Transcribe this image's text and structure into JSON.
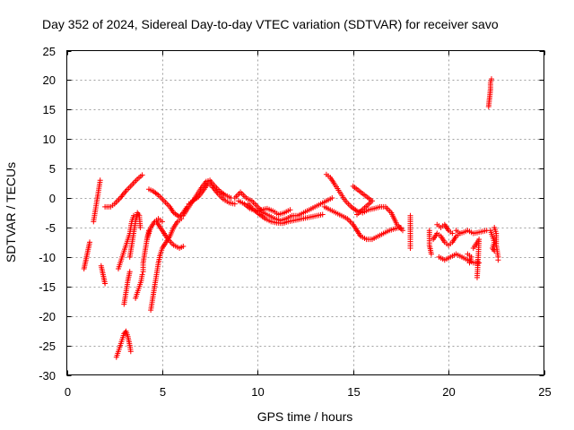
{
  "chart_data": {
    "type": "scatter",
    "title": "Day 352 of 2024, Sidereal Day-to-day VTEC variation (SDTVAR) for receiver savo",
    "xlabel": "GPS time / hours",
    "ylabel": "SDTVAR / TECUs",
    "xlim": [
      0,
      25
    ],
    "ylim": [
      -30,
      25
    ],
    "xticks": [
      0,
      5,
      10,
      15,
      20,
      25
    ],
    "yticks": [
      -30,
      -25,
      -20,
      -15,
      -10,
      -5,
      0,
      5,
      10,
      15,
      20,
      25
    ],
    "grid": true,
    "legend": "none",
    "marker": "+",
    "series_color": "#ff0000",
    "segments": [
      [
        [
          0.9,
          -12
        ],
        [
          1.0,
          -10.5
        ],
        [
          1.1,
          -9
        ],
        [
          1.2,
          -7.5
        ]
      ],
      [
        [
          1.4,
          -4
        ],
        [
          1.5,
          -2
        ],
        [
          1.6,
          0
        ],
        [
          1.7,
          2
        ],
        [
          1.75,
          3
        ]
      ],
      [
        [
          1.8,
          -11.5
        ],
        [
          1.9,
          -13
        ],
        [
          2.0,
          -14.5
        ]
      ],
      [
        [
          2.0,
          -1.5
        ],
        [
          2.3,
          -1.5
        ],
        [
          2.5,
          -1
        ],
        [
          2.8,
          0
        ],
        [
          3.1,
          1.2
        ],
        [
          3.4,
          2.2
        ],
        [
          3.7,
          3.2
        ],
        [
          3.95,
          3.9
        ]
      ],
      [
        [
          2.6,
          -27
        ],
        [
          2.7,
          -26
        ],
        [
          2.8,
          -25
        ],
        [
          2.9,
          -24
        ],
        [
          3.0,
          -23
        ],
        [
          3.1,
          -22.6
        ],
        [
          3.2,
          -23.5
        ],
        [
          3.3,
          -25
        ],
        [
          3.35,
          -26
        ]
      ],
      [
        [
          2.7,
          -12
        ],
        [
          2.8,
          -11
        ],
        [
          2.9,
          -10
        ],
        [
          3.0,
          -9
        ],
        [
          3.1,
          -8
        ],
        [
          3.2,
          -7
        ],
        [
          3.3,
          -6
        ],
        [
          3.4,
          -4
        ],
        [
          3.5,
          -3
        ]
      ],
      [
        [
          3.0,
          -18
        ],
        [
          3.1,
          -16
        ],
        [
          3.2,
          -14
        ],
        [
          3.3,
          -12.5
        ]
      ],
      [
        [
          3.3,
          -10
        ],
        [
          3.4,
          -8
        ],
        [
          3.5,
          -6
        ],
        [
          3.6,
          -4
        ],
        [
          3.7,
          -2.5
        ],
        [
          3.8,
          -3
        ],
        [
          3.85,
          -5
        ]
      ],
      [
        [
          3.6,
          -17
        ],
        [
          3.7,
          -16
        ],
        [
          3.8,
          -15
        ],
        [
          3.9,
          -14
        ],
        [
          3.95,
          -13
        ]
      ],
      [
        [
          4.0,
          -12.5
        ],
        [
          4.0,
          -11
        ],
        [
          4.1,
          -9
        ],
        [
          4.2,
          -7
        ],
        [
          4.3,
          -5.5
        ]
      ],
      [
        [
          4.2,
          -7
        ],
        [
          4.4,
          -5
        ],
        [
          4.6,
          -4
        ],
        [
          4.8,
          -3.5
        ],
        [
          5.0,
          -4
        ]
      ],
      [
        [
          4.4,
          -19
        ],
        [
          4.5,
          -17
        ],
        [
          4.6,
          -15
        ],
        [
          4.7,
          -13
        ],
        [
          4.8,
          -11
        ],
        [
          4.9,
          -9.5
        ],
        [
          5.0,
          -8.5
        ],
        [
          5.2,
          -7.5
        ],
        [
          5.4,
          -6.5
        ],
        [
          5.6,
          -5
        ],
        [
          5.8,
          -4
        ],
        [
          6.0,
          -3.5
        ]
      ],
      [
        [
          4.3,
          1.5
        ],
        [
          4.5,
          1.2
        ],
        [
          4.8,
          0.5
        ],
        [
          5.1,
          -0.5
        ],
        [
          5.4,
          -1.5
        ],
        [
          5.6,
          -2.5
        ],
        [
          5.9,
          -3.2
        ],
        [
          6.1,
          -2.5
        ],
        [
          6.3,
          -1.5
        ]
      ],
      [
        [
          4.7,
          -4
        ],
        [
          4.9,
          -5
        ],
        [
          5.1,
          -6
        ],
        [
          5.3,
          -7
        ],
        [
          5.6,
          -8
        ],
        [
          5.9,
          -8.5
        ],
        [
          6.1,
          -8.2
        ]
      ],
      [
        [
          6.1,
          -3
        ],
        [
          6.4,
          -1.5
        ],
        [
          6.7,
          0
        ],
        [
          7.0,
          1.5
        ],
        [
          7.3,
          2.8
        ],
        [
          7.5,
          3
        ],
        [
          7.7,
          2.2
        ],
        [
          8.0,
          1.2
        ],
        [
          8.3,
          0.5
        ],
        [
          8.6,
          0
        ]
      ],
      [
        [
          6.4,
          -1
        ],
        [
          6.6,
          -0.5
        ],
        [
          6.9,
          0.2
        ],
        [
          7.2,
          1.5
        ],
        [
          7.4,
          2.5
        ],
        [
          7.6,
          2
        ],
        [
          7.9,
          0.8
        ],
        [
          8.2,
          -0.2
        ],
        [
          8.5,
          -0.8
        ],
        [
          8.8,
          -1
        ]
      ],
      [
        [
          8.8,
          0
        ],
        [
          9.1,
          1
        ],
        [
          9.4,
          0
        ],
        [
          9.7,
          -0.5
        ],
        [
          10.0,
          -1.5
        ],
        [
          10.3,
          -2.5
        ],
        [
          10.6,
          -3
        ],
        [
          10.9,
          -3.5
        ],
        [
          11.2,
          -3.8
        ],
        [
          11.5,
          -3.5
        ],
        [
          11.8,
          -3
        ],
        [
          12.1,
          -3
        ],
        [
          12.4,
          -2.5
        ],
        [
          12.7,
          -2
        ],
        [
          13.0,
          -1.5
        ],
        [
          13.3,
          -1
        ],
        [
          13.6,
          -0.5
        ],
        [
          13.9,
          0
        ]
      ],
      [
        [
          9.5,
          -1
        ],
        [
          9.8,
          -2
        ],
        [
          10.1,
          -2.8
        ],
        [
          10.4,
          -3.5
        ],
        [
          10.7,
          -4
        ],
        [
          11.0,
          -4.2
        ],
        [
          11.3,
          -4.3
        ],
        [
          11.6,
          -4
        ],
        [
          11.9,
          -3.8
        ],
        [
          12.2,
          -3.6
        ],
        [
          12.5,
          -3.4
        ],
        [
          12.8,
          -3.2
        ],
        [
          13.1,
          -3
        ],
        [
          13.4,
          -2.8
        ]
      ],
      [
        [
          9.0,
          -0.5
        ],
        [
          9.3,
          -1
        ],
        [
          9.6,
          -1.8
        ],
        [
          9.9,
          -2.2
        ],
        [
          10.2,
          -2
        ],
        [
          10.5,
          -1.8
        ],
        [
          10.8,
          -2.2
        ],
        [
          11.1,
          -2.8
        ],
        [
          11.4,
          -2.5
        ],
        [
          11.7,
          -2
        ]
      ],
      [
        [
          13.6,
          4
        ],
        [
          13.8,
          3.5
        ],
        [
          14.0,
          2.5
        ],
        [
          14.3,
          1
        ],
        [
          14.6,
          -0.5
        ],
        [
          14.9,
          -1.5
        ],
        [
          15.2,
          -2.2
        ],
        [
          15.5,
          -2.5
        ],
        [
          15.8,
          -2
        ],
        [
          16.1,
          -1.8
        ],
        [
          16.4,
          -1.5
        ],
        [
          16.7,
          -1.5
        ],
        [
          17.0,
          -2.5
        ],
        [
          17.3,
          -4.5
        ],
        [
          17.6,
          -5.5
        ]
      ],
      [
        [
          13.5,
          -1.5
        ],
        [
          13.8,
          -2
        ],
        [
          14.1,
          -2.5
        ],
        [
          14.4,
          -3
        ],
        [
          14.7,
          -3.5
        ],
        [
          15.0,
          -4.5
        ],
        [
          15.2,
          -5.5
        ],
        [
          15.4,
          -6.5
        ],
        [
          15.7,
          -7
        ],
        [
          16.0,
          -7
        ],
        [
          16.3,
          -6.5
        ],
        [
          16.6,
          -6
        ],
        [
          16.9,
          -5.5
        ],
        [
          17.2,
          -5.2
        ],
        [
          17.5,
          -5
        ]
      ],
      [
        [
          15.0,
          2
        ],
        [
          16.0,
          -0.5
        ],
        [
          15.2,
          -2.8
        ]
      ],
      [
        [
          18.0,
          -3
        ],
        [
          18.0,
          -5
        ],
        [
          18.0,
          -6
        ],
        [
          18.0,
          -7
        ],
        [
          18.0,
          -8.5
        ]
      ],
      [
        [
          19.0,
          -5.5
        ],
        [
          19.0,
          -6.5
        ],
        [
          19.0,
          -8
        ],
        [
          19.1,
          -9.5
        ]
      ],
      [
        [
          19.2,
          -7
        ],
        [
          19.4,
          -6
        ],
        [
          19.6,
          -6.5
        ],
        [
          19.8,
          -7.5
        ],
        [
          20.0,
          -8
        ],
        [
          20.2,
          -7.5
        ],
        [
          20.4,
          -6.5
        ],
        [
          20.6,
          -6
        ]
      ],
      [
        [
          19.4,
          -4.5
        ],
        [
          19.6,
          -5
        ],
        [
          19.8,
          -4.5
        ],
        [
          20.0,
          -5.5
        ],
        [
          20.2,
          -6
        ]
      ],
      [
        [
          19.5,
          -10
        ],
        [
          19.8,
          -10.5
        ],
        [
          20.1,
          -10
        ],
        [
          20.4,
          -9.5
        ],
        [
          20.7,
          -10
        ],
        [
          21.0,
          -10.5
        ],
        [
          21.3,
          -11
        ],
        [
          21.6,
          -11
        ]
      ],
      [
        [
          20.4,
          -5.5
        ],
        [
          20.6,
          -6
        ],
        [
          20.8,
          -5.8
        ],
        [
          21.0,
          -5.5
        ],
        [
          21.3,
          -6
        ],
        [
          21.6,
          -5.8
        ],
        [
          22.0,
          -5.5
        ]
      ],
      [
        [
          21.0,
          -9.5
        ],
        [
          21.2,
          -10
        ],
        [
          21.1,
          -11
        ]
      ],
      [
        [
          21.3,
          -8.5
        ],
        [
          21.6,
          -7
        ],
        [
          21.5,
          -13.5
        ]
      ],
      [
        [
          22.1,
          15.5
        ],
        [
          22.15,
          17
        ],
        [
          22.2,
          18.5
        ],
        [
          22.2,
          19.5
        ],
        [
          22.25,
          20.2
        ]
      ],
      [
        [
          22.2,
          -5.5
        ],
        [
          22.3,
          -6.5
        ],
        [
          22.4,
          -7.5
        ],
        [
          22.3,
          -8.5
        ],
        [
          22.4,
          -9
        ]
      ],
      [
        [
          22.4,
          -5
        ],
        [
          22.5,
          -6
        ],
        [
          22.5,
          -8
        ],
        [
          22.6,
          -10
        ],
        [
          22.6,
          -10.5
        ]
      ]
    ]
  }
}
